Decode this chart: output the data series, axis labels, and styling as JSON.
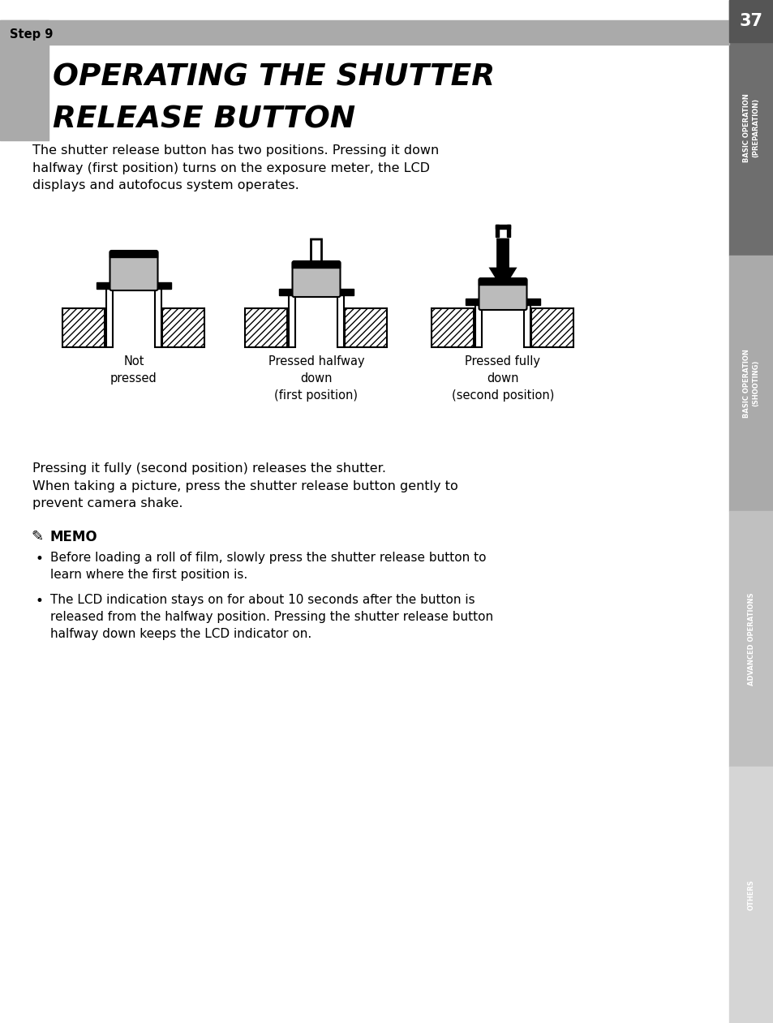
{
  "page_bg": "#ffffff",
  "header_bar_color": "#aaaaaa",
  "title_bar_color": "#aaaaaa",
  "page_number": "37",
  "step_label": "Step 9",
  "title_line1": "OPERATING THE SHUTTER",
  "title_line2": "RELEASE BUTTON",
  "body_text1": "The shutter release button has two positions. Pressing it down\nhalfway (first position) turns on the exposure meter, the LCD\ndisplays and autofocus system operates.",
  "body_text2": "Pressing it fully (second position) releases the shutter.\nWhen taking a picture, press the shutter release button gently to\nprevent camera shake.",
  "memo_title": "MEMO",
  "memo_bullet1": "Before loading a roll of film, slowly press the shutter release button to\nlearn where the first position is.",
  "memo_bullet2": "The LCD indication stays on for about 10 seconds after the button is\nreleased from the halfway position. Pressing the shutter release button\nhalfway down keeps the LCD indicator on.",
  "diagram_label1": "Not\npressed",
  "diagram_label2": "Pressed halfway\ndown\n(first position)",
  "diagram_label3": "Pressed fully\ndown\n(second position)",
  "sidebar_color1": "#6e6e6e",
  "sidebar_color2": "#aaaaaa",
  "sidebar_color3": "#c0c0c0",
  "sidebar_color4": "#d5d5d5",
  "sidebar_label1": "BASIC OPERATION\n(PREPARATION)",
  "sidebar_label2": "BASIC OPERATION\n(SHOOTING)",
  "sidebar_label3": "ADVANCED OPERATIONS",
  "sidebar_label4": "OTHERS",
  "pageno_box_color": "#555555",
  "button_gray": "#bbbbbb",
  "hatch_color": "#000000"
}
